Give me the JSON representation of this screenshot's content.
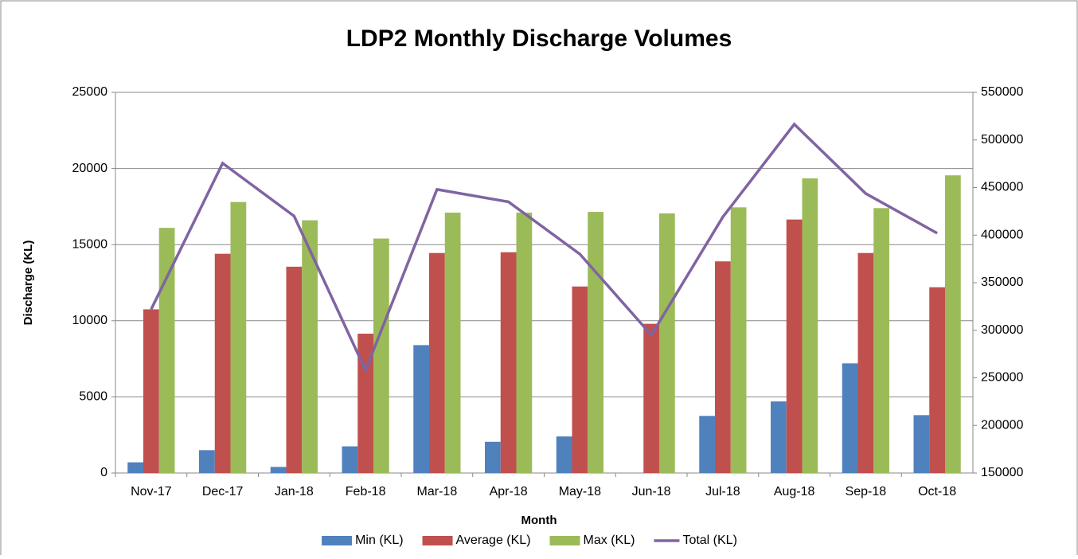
{
  "chart_data": {
    "type": "bar",
    "title": "LDP2 Monthly Discharge Volumes",
    "x_label": "Month",
    "y_label": "Discharge (KL)",
    "categories": [
      "Nov-17",
      "Dec-17",
      "Jan-18",
      "Feb-18",
      "Mar-18",
      "Apr-18",
      "May-18",
      "Jun-18",
      "Jul-18",
      "Aug-18",
      "Sep-18",
      "Oct-18"
    ],
    "series": [
      {
        "name": "Min (KL)",
        "color": "#4f81bd",
        "type": "bar",
        "values": [
          700,
          1500,
          400,
          1750,
          8400,
          2050,
          2400,
          0,
          3750,
          4700,
          7200,
          3800
        ]
      },
      {
        "name": "Average (KL)",
        "color": "#c0504d",
        "type": "bar",
        "values": [
          10750,
          14400,
          13550,
          9150,
          14450,
          14500,
          12250,
          9800,
          13900,
          16650,
          14450,
          12200
        ]
      },
      {
        "name": "Max (KL)",
        "color": "#9bbb59",
        "type": "bar",
        "values": [
          16100,
          17800,
          16600,
          15400,
          17100,
          17100,
          17150,
          17050,
          17450,
          19350,
          17400,
          19550
        ]
      },
      {
        "name": "Total (KL)",
        "color": "#8064a2",
        "type": "line",
        "axis": "y2",
        "values": [
          322000,
          475500,
          420000,
          258000,
          448000,
          435000,
          380000,
          295000,
          419000,
          516500,
          443700,
          402000
        ]
      }
    ],
    "ylim": [
      0,
      25000
    ],
    "yticks": [
      0,
      5000,
      10000,
      15000,
      20000,
      25000
    ],
    "y2lim": [
      150000,
      550000
    ],
    "y2ticks": [
      150000,
      200000,
      250000,
      300000,
      350000,
      400000,
      450000,
      500000,
      550000
    ],
    "grid": true,
    "legend": "bottom"
  }
}
